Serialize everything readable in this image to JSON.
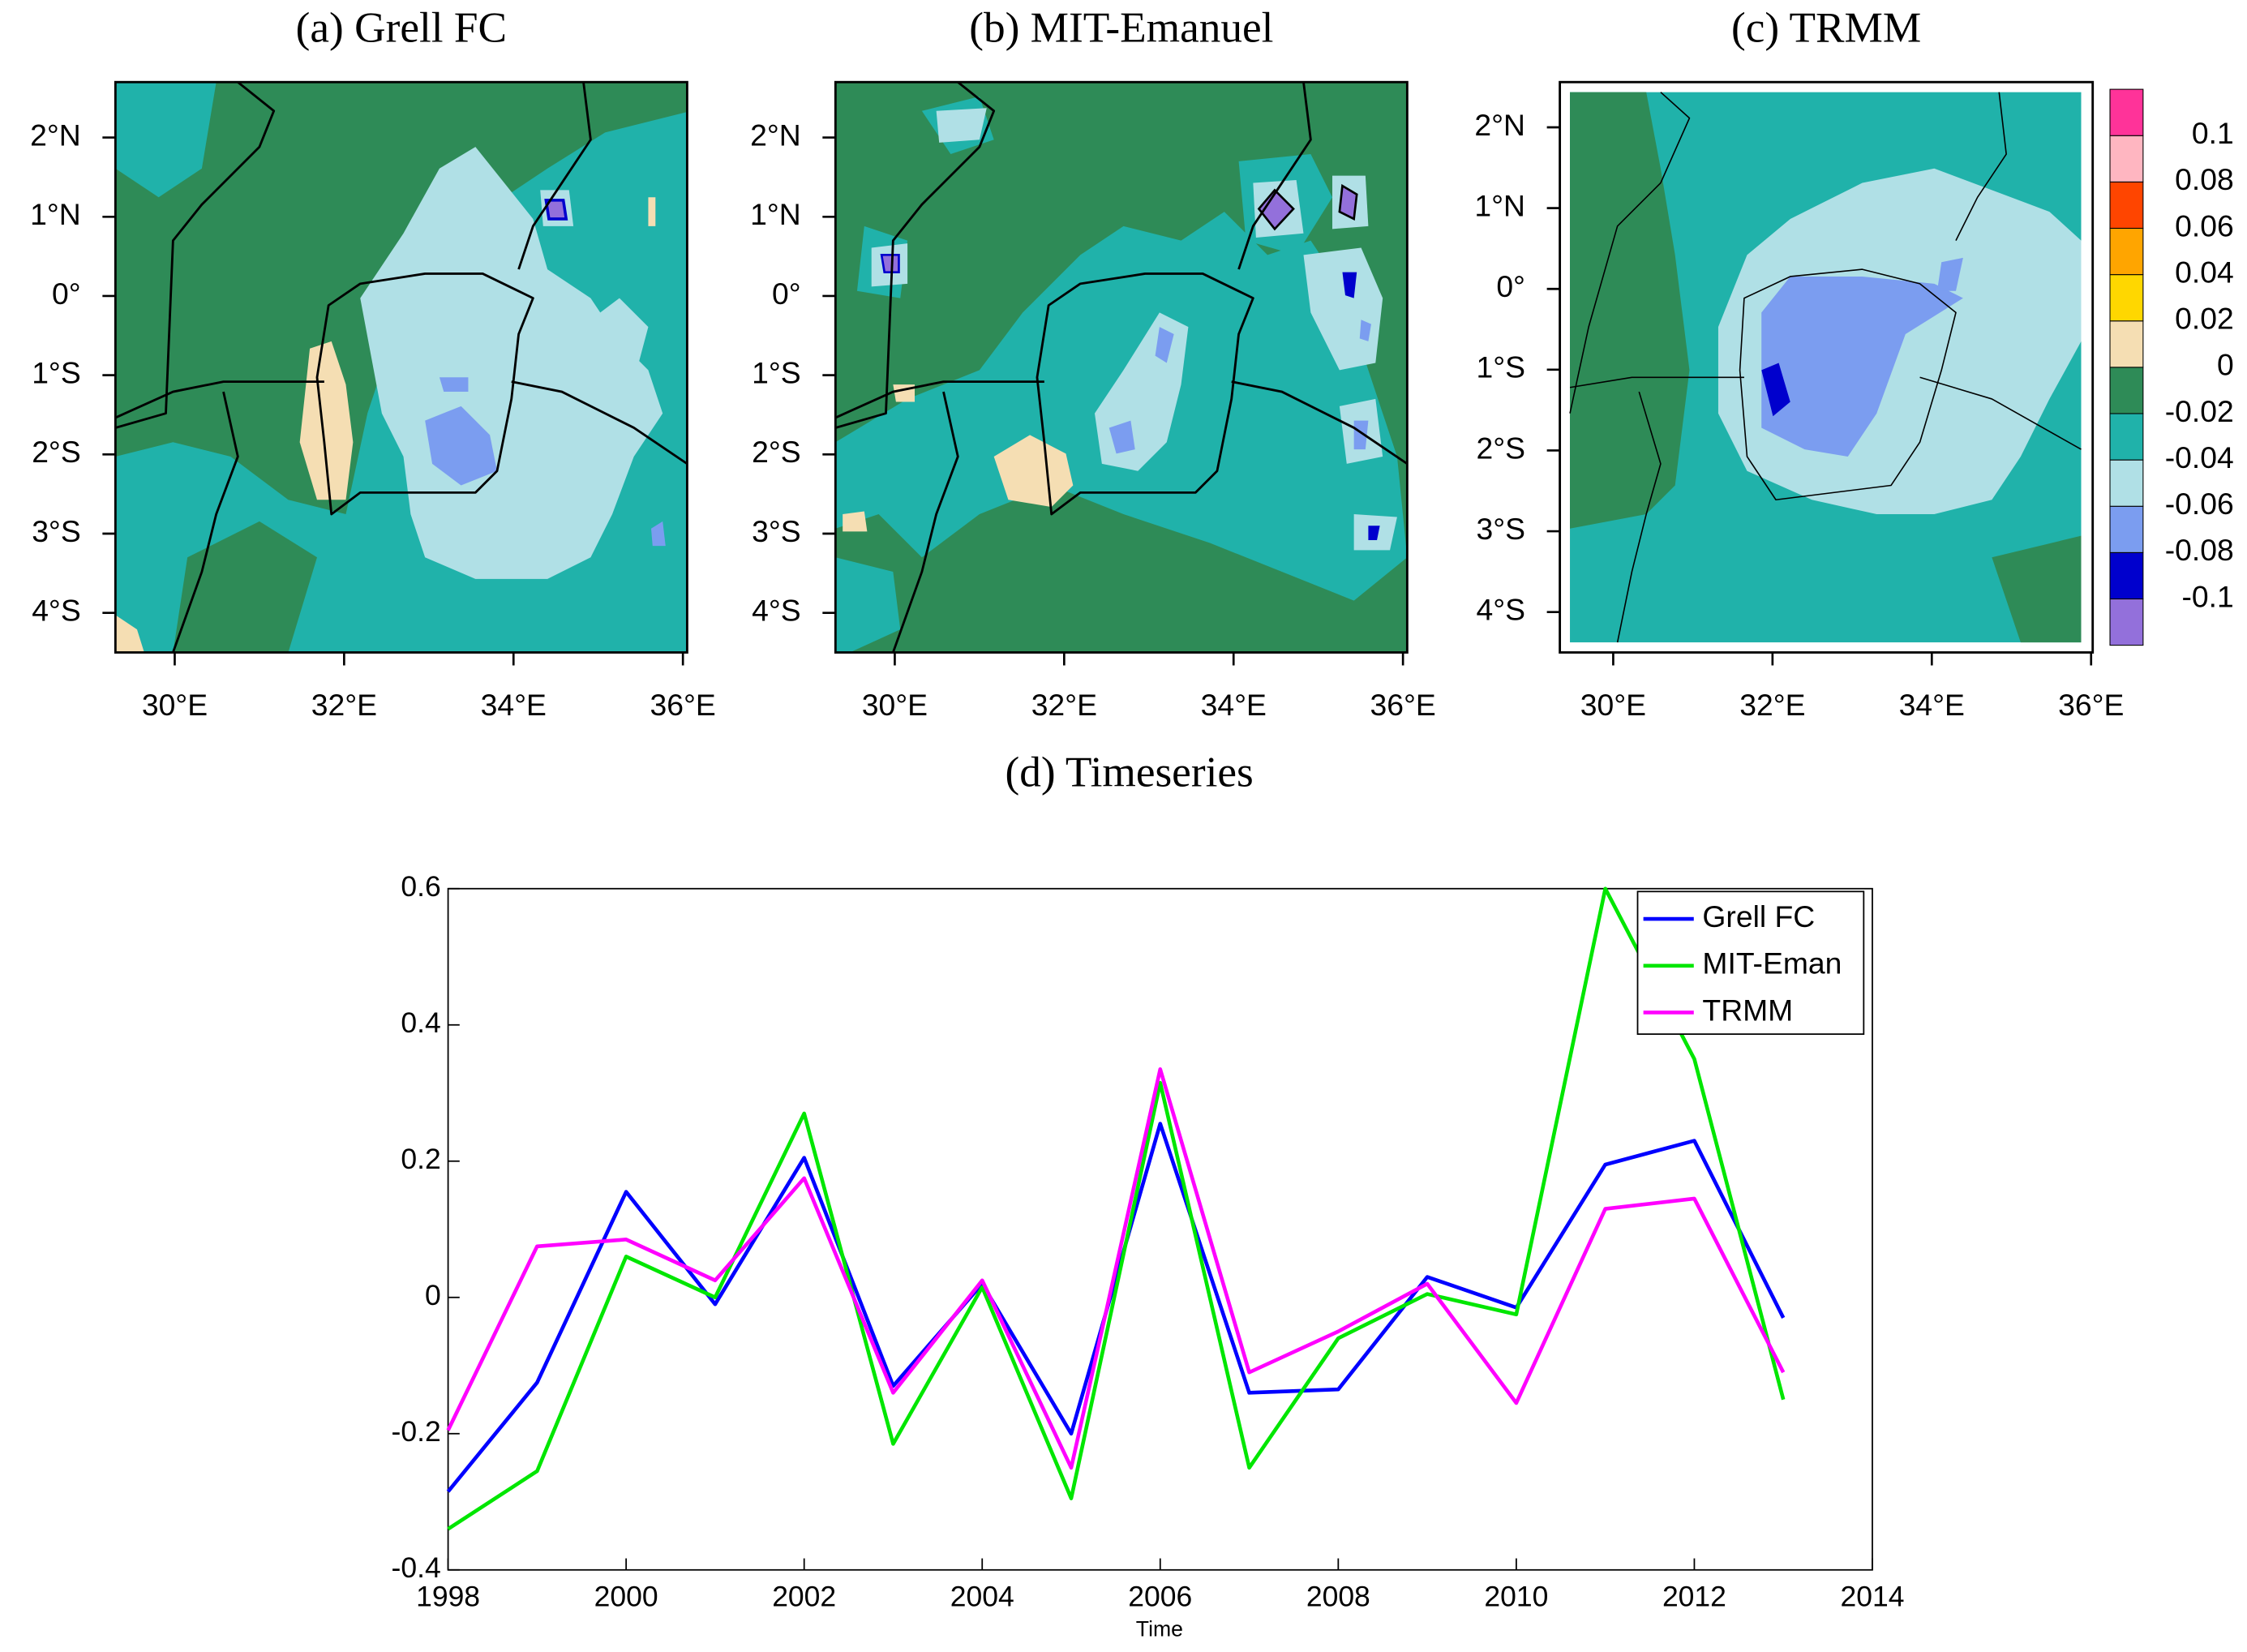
{
  "chart_data": [
    {
      "type": "map",
      "title": "(a) Grell FC",
      "xlim": [
        29.3,
        36.05
      ],
      "ylim": [
        -4.5,
        2.7
      ],
      "xticks": [
        {
          "value": 30,
          "label": "30°E"
        },
        {
          "value": 32,
          "label": "32°E"
        },
        {
          "value": 34,
          "label": "34°E"
        },
        {
          "value": 36,
          "label": "36°E"
        }
      ],
      "yticks": [
        {
          "value": 2,
          "label": "2°N"
        },
        {
          "value": 1,
          "label": "1°N"
        },
        {
          "value": 0,
          "label": "0°"
        },
        {
          "value": -1,
          "label": "1°S"
        },
        {
          "value": -2,
          "label": "2°S"
        },
        {
          "value": -3,
          "label": "3°S"
        },
        {
          "value": -4,
          "label": "4°S"
        }
      ]
    },
    {
      "type": "map",
      "title": "(b) MIT-Emanuel",
      "xlim": [
        29.3,
        36.05
      ],
      "ylim": [
        -4.5,
        2.7
      ],
      "xticks": [
        {
          "value": 30,
          "label": "30°E"
        },
        {
          "value": 32,
          "label": "32°E"
        },
        {
          "value": 34,
          "label": "34°E"
        },
        {
          "value": 36,
          "label": "36°E"
        }
      ],
      "yticks": [
        {
          "value": 2,
          "label": "2°N"
        },
        {
          "value": 1,
          "label": "1°N"
        },
        {
          "value": 0,
          "label": "0°"
        },
        {
          "value": -1,
          "label": "1°S"
        },
        {
          "value": -2,
          "label": "2°S"
        },
        {
          "value": -3,
          "label": "3°S"
        },
        {
          "value": -4,
          "label": "4°S"
        }
      ]
    },
    {
      "type": "map",
      "title": "(c) TRMM",
      "xlim": [
        29.33,
        36.02
      ],
      "ylim": [
        -4.5,
        2.56
      ],
      "xticks": [
        {
          "value": 30,
          "label": "30°E"
        },
        {
          "value": 32,
          "label": "32°E"
        },
        {
          "value": 34,
          "label": "34°E"
        },
        {
          "value": 36,
          "label": "36°E"
        }
      ],
      "yticks": [
        {
          "value": 2,
          "label": "2°N"
        },
        {
          "value": 1,
          "label": "1°N"
        },
        {
          "value": 0,
          "label": "0°"
        },
        {
          "value": -1,
          "label": "1°S"
        },
        {
          "value": -2,
          "label": "2°S"
        },
        {
          "value": -3,
          "label": "3°S"
        },
        {
          "value": -4,
          "label": "4°S"
        }
      ]
    },
    {
      "type": "colorbar",
      "levels": [
        -0.1,
        -0.08,
        -0.06,
        -0.04,
        -0.02,
        0,
        0.02,
        0.04,
        0.06,
        0.08,
        0.1
      ],
      "colors": [
        "#9370db",
        "#0000cd",
        "#7b9df0",
        "#b0e0e6",
        "#20b2aa",
        "#2e8b57",
        "#f5deb3",
        "#ffd700",
        "#ffa500",
        "#ff4500",
        "#ffb6c1",
        "#ff3399"
      ]
    },
    {
      "type": "line",
      "title": "(d) Timeseries",
      "x_label": "Time",
      "x": [
        1998,
        1999,
        2000,
        2001,
        2002,
        2003,
        2004,
        2005,
        2006,
        2007,
        2008,
        2009,
        2010,
        2011,
        2012,
        2013
      ],
      "series": [
        {
          "name": "Grell FC",
          "color": "#0000ff",
          "values": [
            -0.285,
            -0.125,
            0.155,
            -0.01,
            0.205,
            -0.13,
            0.02,
            -0.2,
            0.255,
            -0.14,
            -0.135,
            0.03,
            -0.015,
            0.195,
            0.23,
            -0.03
          ]
        },
        {
          "name": "MIT-Eman",
          "color": "#00e600",
          "values": [
            -0.34,
            -0.255,
            0.06,
            0.0,
            0.27,
            -0.215,
            0.015,
            -0.295,
            0.315,
            -0.25,
            -0.06,
            0.005,
            -0.025,
            0.6,
            0.35,
            -0.15
          ]
        },
        {
          "name": "TRMM",
          "color": "#ff00ff",
          "values": [
            -0.195,
            0.075,
            0.085,
            0.025,
            0.175,
            -0.14,
            0.025,
            -0.25,
            0.335,
            -0.11,
            -0.05,
            0.02,
            -0.155,
            0.13,
            0.145,
            -0.11
          ]
        }
      ],
      "xlim": [
        1998,
        2014
      ],
      "xticks": [
        1998,
        2000,
        2002,
        2004,
        2006,
        2008,
        2010,
        2012,
        2014
      ],
      "ylim": [
        -0.4,
        0.6
      ],
      "yticks": [
        -0.4,
        -0.2,
        0,
        0.2,
        0.4,
        0.6
      ],
      "legend": "upper right",
      "grid": false
    }
  ]
}
